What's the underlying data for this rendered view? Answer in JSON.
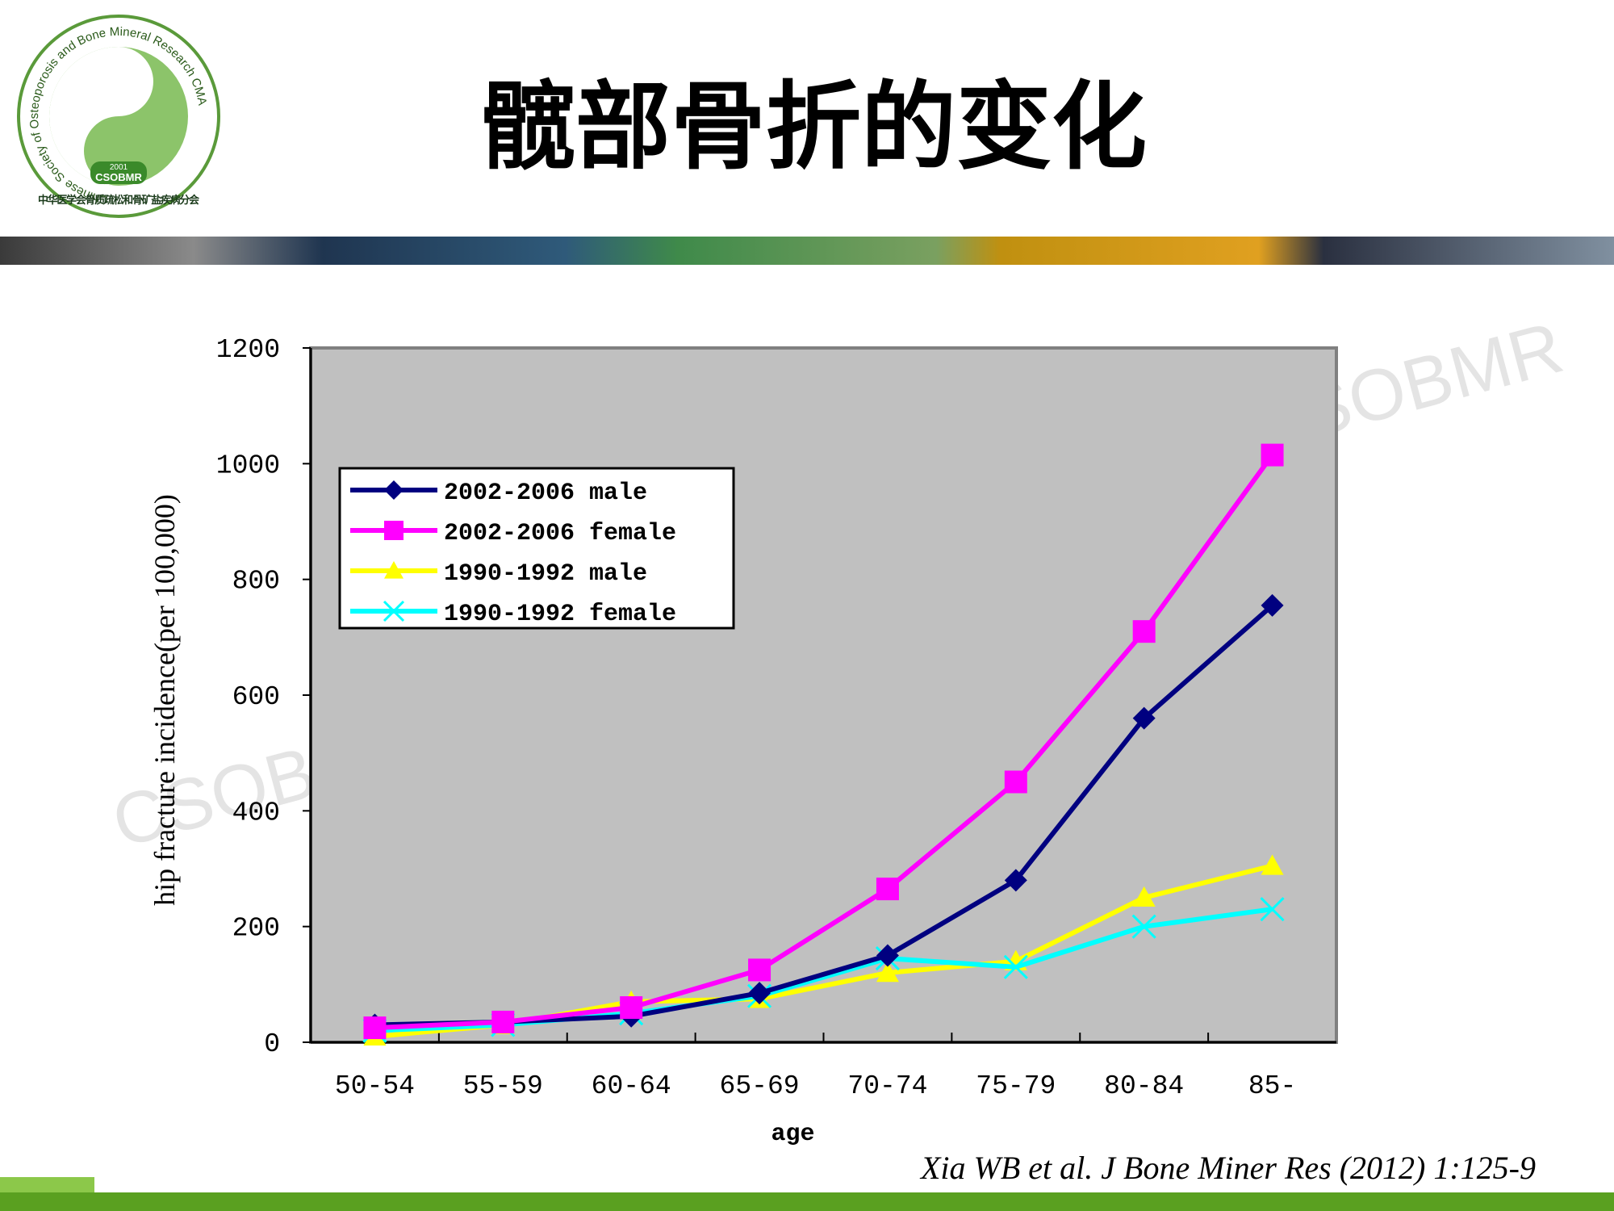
{
  "logo": {
    "ring_text": "Chinese Society of Osteoporosis and Bone Mineral Research CMA",
    "year": "2001",
    "abbr": "CSOBMR",
    "chinese_name": "中华医学会骨质疏松和骨矿盐疾病分会"
  },
  "watermark": "CSOBMR",
  "citation": "Xia WB et al. J Bone Miner Res (2012) 1:125-9",
  "chart_data": {
    "type": "line",
    "title": "髋部骨折的变化",
    "x_label": "age",
    "y_label": "hip fracture incidence(per 100,000)",
    "categories": [
      "50-54",
      "55-59",
      "60-64",
      "65-69",
      "70-74",
      "75-79",
      "80-84",
      "85-"
    ],
    "series": [
      {
        "name": "2002-2006 male",
        "color": "#000080",
        "marker": "diamond",
        "values": [
          30,
          35,
          45,
          85,
          150,
          280,
          560,
          755
        ]
      },
      {
        "name": "2002-2006 female",
        "color": "#ff00ff",
        "marker": "square",
        "values": [
          25,
          35,
          60,
          125,
          265,
          450,
          710,
          1015
        ]
      },
      {
        "name": "1990-1992 male",
        "color": "#ffff00",
        "marker": "triangle",
        "values": [
          10,
          30,
          70,
          75,
          120,
          140,
          250,
          305
        ]
      },
      {
        "name": "1990-1992 female",
        "color": "#00ffff",
        "marker": "x",
        "values": [
          20,
          30,
          50,
          80,
          145,
          130,
          200,
          230
        ]
      }
    ],
    "ylim": [
      0,
      1200
    ],
    "yticks": [
      0,
      200,
      400,
      600,
      800,
      1000,
      1200
    ],
    "grid": false,
    "legend": "upper left"
  }
}
